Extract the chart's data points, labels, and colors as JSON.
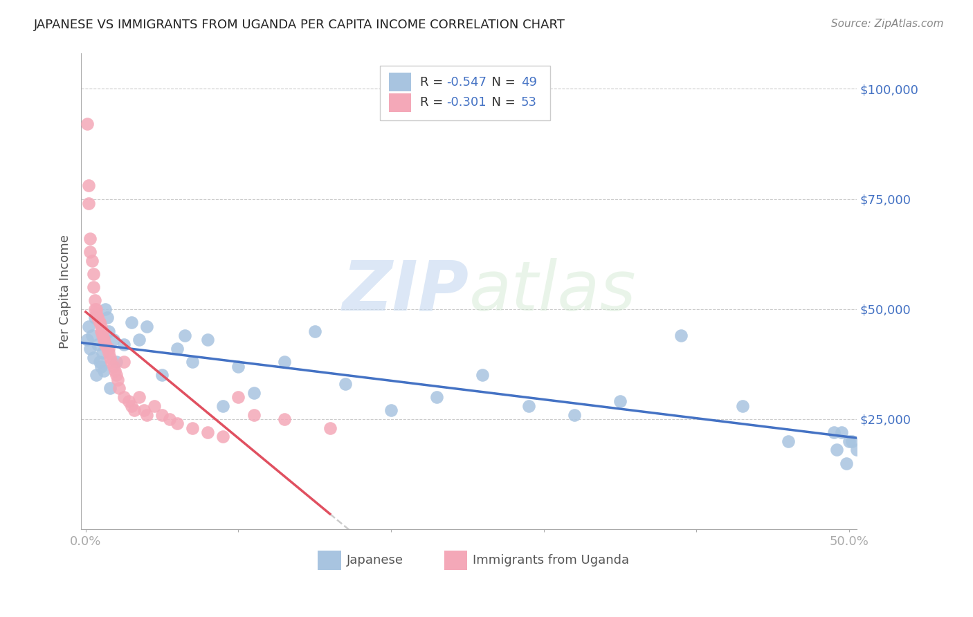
{
  "title": "JAPANESE VS IMMIGRANTS FROM UGANDA PER CAPITA INCOME CORRELATION CHART",
  "source": "Source: ZipAtlas.com",
  "ylabel": "Per Capita Income",
  "legend_label1": "Japanese",
  "legend_label2": "Immigrants from Uganda",
  "R1": -0.547,
  "N1": 49,
  "R2": -0.301,
  "N2": 53,
  "color_japanese": "#a8c4e0",
  "color_uganda": "#f4a8b8",
  "color_japanese_line": "#4472c4",
  "color_uganda_line": "#e05060",
  "color_dashed_line": "#cccccc",
  "color_axis_labels": "#4472c4",
  "watermark": "ZIPatlas",
  "yticks": [
    0,
    25000,
    50000,
    75000,
    100000
  ],
  "ylim": [
    0,
    108000
  ],
  "xlim": [
    -0.003,
    0.505
  ],
  "japanese_x": [
    0.001,
    0.002,
    0.003,
    0.004,
    0.005,
    0.006,
    0.007,
    0.008,
    0.009,
    0.01,
    0.011,
    0.012,
    0.013,
    0.014,
    0.015,
    0.016,
    0.018,
    0.02,
    0.025,
    0.03,
    0.035,
    0.04,
    0.05,
    0.06,
    0.065,
    0.07,
    0.08,
    0.09,
    0.1,
    0.11,
    0.13,
    0.15,
    0.17,
    0.2,
    0.23,
    0.26,
    0.29,
    0.32,
    0.35,
    0.39,
    0.43,
    0.46,
    0.49,
    0.5,
    0.505,
    0.502,
    0.498,
    0.495,
    0.492
  ],
  "japanese_y": [
    43000,
    46000,
    41000,
    44000,
    39000,
    48000,
    35000,
    42000,
    38000,
    37000,
    40000,
    36000,
    50000,
    48000,
    45000,
    32000,
    43000,
    38000,
    42000,
    47000,
    43000,
    46000,
    35000,
    41000,
    44000,
    38000,
    43000,
    28000,
    37000,
    31000,
    38000,
    45000,
    33000,
    27000,
    30000,
    35000,
    28000,
    26000,
    29000,
    44000,
    28000,
    20000,
    22000,
    20000,
    18000,
    20000,
    15000,
    22000,
    18000
  ],
  "uganda_x": [
    0.001,
    0.002,
    0.002,
    0.003,
    0.003,
    0.004,
    0.005,
    0.005,
    0.006,
    0.006,
    0.007,
    0.007,
    0.008,
    0.008,
    0.009,
    0.009,
    0.01,
    0.01,
    0.011,
    0.011,
    0.012,
    0.012,
    0.013,
    0.013,
    0.014,
    0.015,
    0.015,
    0.016,
    0.017,
    0.018,
    0.019,
    0.02,
    0.021,
    0.022,
    0.025,
    0.025,
    0.028,
    0.03,
    0.032,
    0.035,
    0.038,
    0.04,
    0.045,
    0.05,
    0.055,
    0.06,
    0.07,
    0.08,
    0.09,
    0.1,
    0.11,
    0.13,
    0.16
  ],
  "uganda_y": [
    92000,
    78000,
    74000,
    66000,
    63000,
    61000,
    58000,
    55000,
    52000,
    50000,
    50000,
    49000,
    48000,
    48000,
    47000,
    47000,
    46000,
    45000,
    45000,
    44000,
    43000,
    43000,
    42000,
    42000,
    41000,
    41000,
    40000,
    39000,
    38000,
    37000,
    36000,
    35000,
    34000,
    32000,
    38000,
    30000,
    29000,
    28000,
    27000,
    30000,
    27000,
    26000,
    28000,
    26000,
    25000,
    24000,
    23000,
    22000,
    21000,
    30000,
    26000,
    25000,
    23000
  ]
}
